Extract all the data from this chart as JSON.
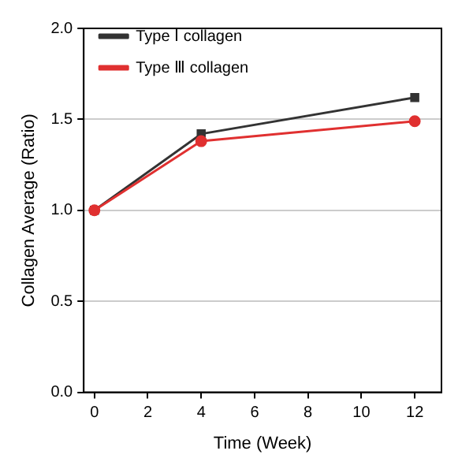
{
  "chart_data": {
    "type": "line",
    "xlabel": "Time (Week)",
    "ylabel": "Collagen Average (Ratio)",
    "x": [
      0,
      4,
      12
    ],
    "series": [
      {
        "name": "Type Ⅰ collagen",
        "color": "#333333",
        "values": [
          1.0,
          1.42,
          1.62
        ],
        "marker": "square"
      },
      {
        "name": "Type Ⅲ collagen",
        "color": "#e03030",
        "values": [
          1.0,
          1.38,
          1.49
        ],
        "marker": "circle"
      }
    ],
    "xlim": [
      -0.4,
      13
    ],
    "xticks": [
      0,
      2,
      4,
      6,
      8,
      10,
      12
    ],
    "ylim": [
      0,
      2
    ],
    "yticks": [
      {
        "value": 0,
        "label": "0.0"
      },
      {
        "value": 0.5,
        "label": "0.5"
      },
      {
        "value": 1,
        "label": "1.0"
      },
      {
        "value": 1.5,
        "label": "1.5"
      },
      {
        "value": 2,
        "label": "2.0"
      }
    ],
    "grid": "y",
    "legend": "top left",
    "line_style": "solid"
  }
}
